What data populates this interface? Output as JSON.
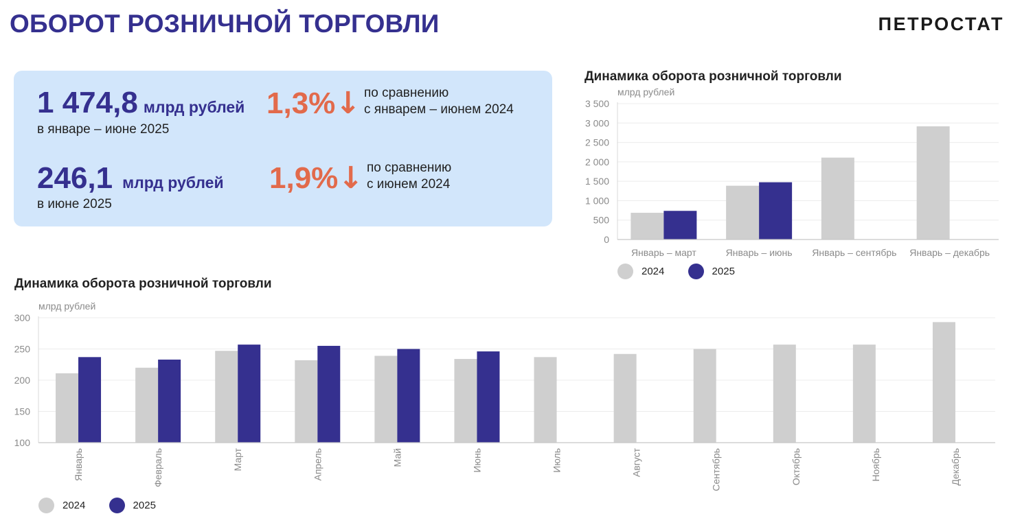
{
  "header": {
    "title": "ОБОРОТ РОЗНИЧНОЙ ТОРГОВЛИ",
    "logo": "ПЕТРОСТАТ"
  },
  "kpis": [
    {
      "value": "1 474,8",
      "unit": "млрд рублей",
      "period": "в январе – июне 2025",
      "change": "1,3%",
      "arrow": "↓",
      "compare_line1": "по сравнению",
      "compare_line2": "с январем – июнем 2024"
    },
    {
      "value": "246,1",
      "unit": "млрд рублей",
      "period": "в июне 2025",
      "change": "1,9%",
      "arrow": "↓",
      "compare_line1": "по сравнению",
      "compare_line2": "с июнем 2024"
    }
  ],
  "colors": {
    "series_2024": "#cfcfcf",
    "series_2025": "#35308f",
    "accent": "#e26a4b",
    "card_bg": "#d2e6fb"
  },
  "chart_data": [
    {
      "type": "bar",
      "title": "Динамика оборота розничной торговли",
      "ylabel": "млрд рублей",
      "categories": [
        "Январь – март",
        "Январь – июнь",
        "Январь – сентябрь",
        "Январь – декабрь"
      ],
      "series": [
        {
          "name": "2024",
          "values": [
            688,
            1385,
            2110,
            2915
          ]
        },
        {
          "name": "2025",
          "values": [
            738,
            1474.8,
            null,
            null
          ]
        }
      ],
      "ylim": [
        0,
        3500
      ],
      "yticks": [
        0,
        500,
        1000,
        1500,
        2000,
        2500,
        3000,
        3500
      ],
      "ytick_labels": [
        "0",
        "500",
        "1 000",
        "1 500",
        "2 000",
        "2 500",
        "3 000",
        "3 500"
      ],
      "grid": true,
      "legend": "bottom-left"
    },
    {
      "type": "bar",
      "title": "Динамика оборота розничной торговли",
      "ylabel": "млрд рублей",
      "categories": [
        "Январь",
        "Февраль",
        "Март",
        "Апрель",
        "Май",
        "Июнь",
        "Июль",
        "Август",
        "Сентябрь",
        "Октябрь",
        "Ноябрь",
        "Декабрь"
      ],
      "series": [
        {
          "name": "2024",
          "values": [
            211,
            220,
            247,
            232,
            239,
            234,
            237,
            242,
            250,
            257,
            257,
            293
          ]
        },
        {
          "name": "2025",
          "values": [
            237,
            233,
            257,
            255,
            250,
            246.1,
            null,
            null,
            null,
            null,
            null,
            null
          ]
        }
      ],
      "ylim": [
        100,
        300
      ],
      "yticks": [
        100,
        150,
        200,
        250,
        300
      ],
      "ytick_labels": [
        "100",
        "150",
        "200",
        "250",
        "300"
      ],
      "grid": true,
      "legend": "bottom-left"
    }
  ]
}
